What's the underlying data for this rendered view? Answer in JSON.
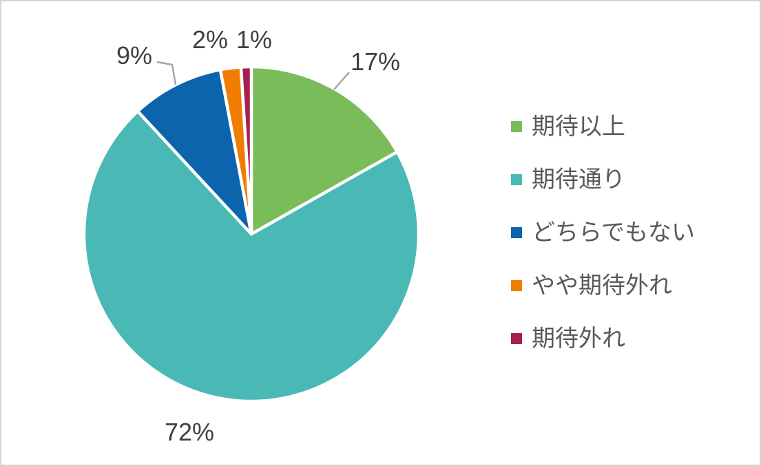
{
  "frame": {
    "background": "#FFFFFF",
    "border_color": "#D4D4D4"
  },
  "chart_data": {
    "type": "pie",
    "title": "",
    "categories": [
      "期待以上",
      "期待通り",
      "どちらでもない",
      "やや期待外れ",
      "期待外れ"
    ],
    "values": [
      17,
      72,
      9,
      2,
      1
    ],
    "unit": "%",
    "data_labels": [
      "17%",
      "72%",
      "9%",
      "2%",
      "1%"
    ],
    "colors": [
      "#7ABC5A",
      "#4AB9B5",
      "#0C64AD",
      "#F07D00",
      "#A81E4D"
    ],
    "start_angle_deg": 0,
    "direction": "clockwise",
    "slice_border_color": "#FFFFFF",
    "label_color": "#3F3F3F",
    "leader_line_color": "#A6A6A6",
    "legend": {
      "position": "right",
      "text_color": "#595959",
      "entries": [
        "期待以上",
        "期待通り",
        "どちらでもない",
        "やや期待外れ",
        "期待外れ"
      ]
    }
  }
}
